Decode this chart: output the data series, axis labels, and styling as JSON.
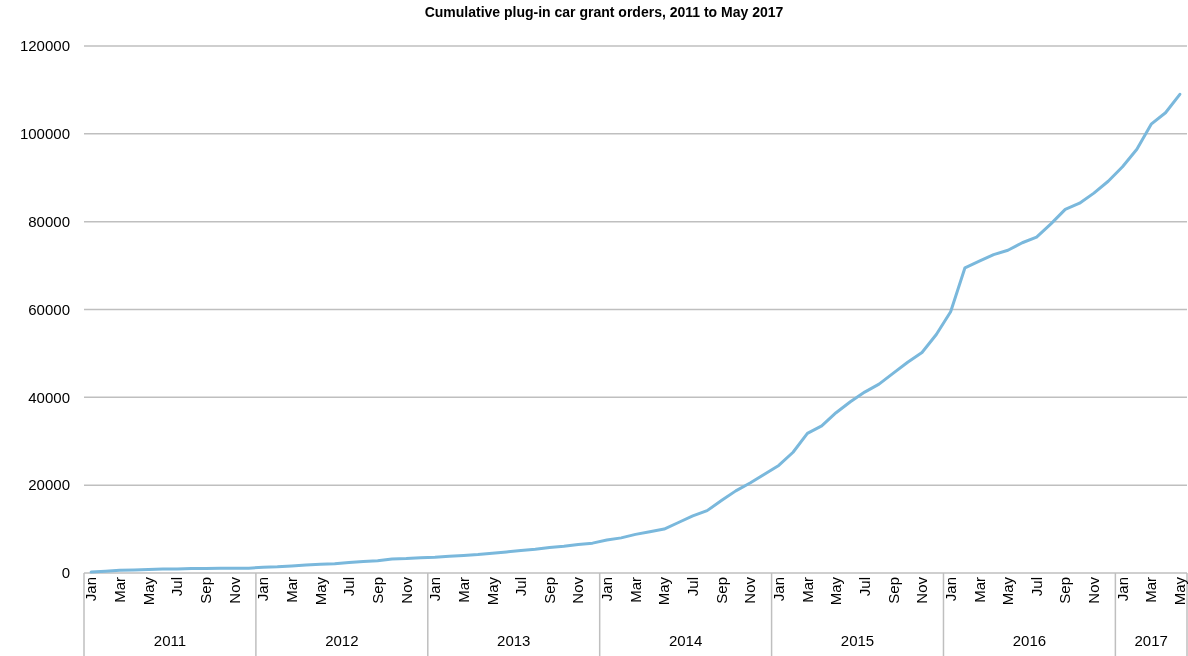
{
  "chart_data": {
    "type": "line",
    "title": "Cumulative plug-in car grant orders, 2011 to May 2017",
    "categories": [
      "Jan",
      null,
      "Mar",
      null,
      "May",
      null,
      "Jul",
      null,
      "Sep",
      null,
      "Nov",
      null,
      "Jan",
      null,
      "Mar",
      null,
      "May",
      null,
      "Jul",
      null,
      "Sep",
      null,
      "Nov",
      null,
      "Jan",
      null,
      "Mar",
      null,
      "May",
      null,
      "Jul",
      null,
      "Sep",
      null,
      "Nov",
      null,
      "Jan",
      null,
      "Mar",
      null,
      "May",
      null,
      "Jul",
      null,
      "Sep",
      null,
      "Nov",
      null,
      "Jan",
      null,
      "Mar",
      null,
      "May",
      null,
      "Jul",
      null,
      "Sep",
      null,
      "Nov",
      null,
      "Jan",
      null,
      "Mar",
      null,
      "May",
      null,
      "Jul",
      null,
      "Sep",
      null,
      "Nov",
      null,
      "Jan",
      null,
      "Mar",
      null,
      "May"
    ],
    "series": [
      {
        "color": "#7ab8dc",
        "values": [
          200,
          400,
          600,
          700,
          800,
          900,
          900,
          1000,
          1000,
          1100,
          1100,
          1100,
          1300,
          1400,
          1600,
          1800,
          2000,
          2100,
          2400,
          2600,
          2800,
          3200,
          3300,
          3500,
          3600,
          3800,
          4000,
          4200,
          4500,
          4800,
          5100,
          5400,
          5800,
          6100,
          6500,
          6800,
          7500,
          8000,
          8800,
          9400,
          10000,
          11500,
          13000,
          14200,
          16500,
          18700,
          20500,
          22500,
          24500,
          27500,
          31800,
          33500,
          36500,
          39000,
          41200,
          43000,
          45500,
          48000,
          50200,
          54300,
          59500,
          69500,
          71000,
          72500,
          73500,
          75200,
          76500,
          79500,
          82800,
          84200,
          86500,
          89200,
          92500,
          96500,
          102200,
          104800,
          109000
        ]
      }
    ],
    "annotations": [
      "2011",
      "2012",
      "2013",
      "2014",
      "2015",
      "2016",
      "2017"
    ],
    "ylim": [
      0,
      120000
    ],
    "yticks": [
      0,
      20000,
      40000,
      60000,
      80000,
      100000,
      120000
    ],
    "grid": "y",
    "marker": "none",
    "line_style": "solid"
  }
}
